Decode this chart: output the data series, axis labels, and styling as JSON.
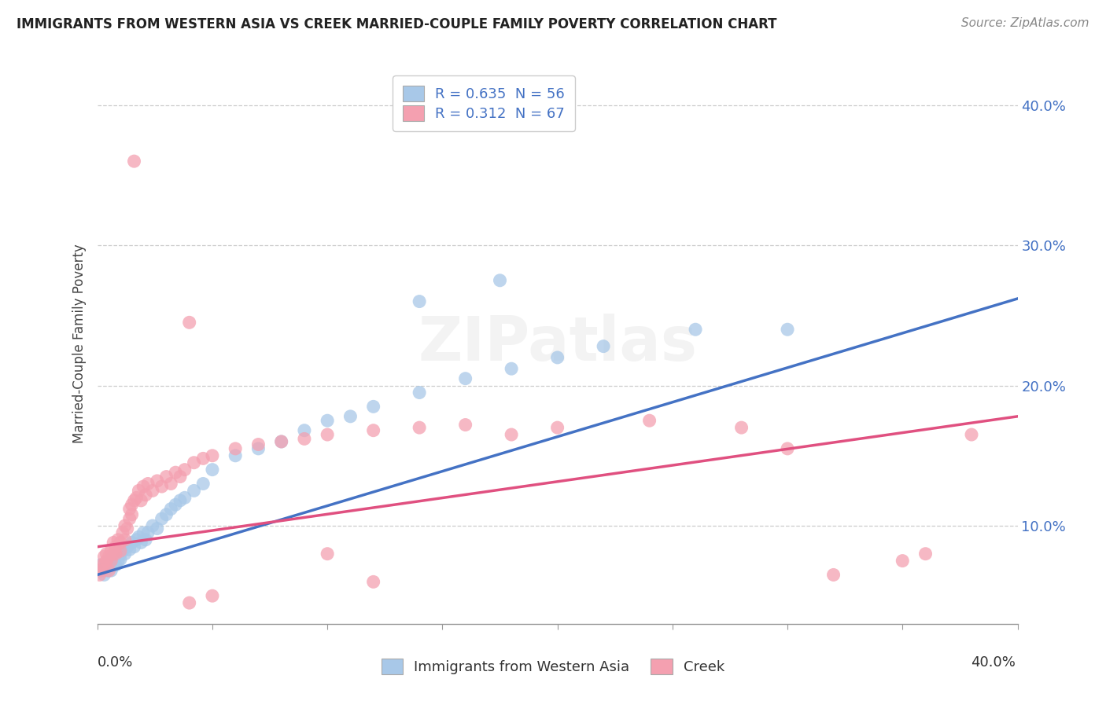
{
  "title": "IMMIGRANTS FROM WESTERN ASIA VS CREEK MARRIED-COUPLE FAMILY POVERTY CORRELATION CHART",
  "source": "Source: ZipAtlas.com",
  "ylabel": "Married-Couple Family Poverty",
  "xlim": [
    0,
    0.4
  ],
  "ylim": [
    0.03,
    0.43
  ],
  "legend1_label": "R = 0.635  N = 56",
  "legend2_label": "R = 0.312  N = 67",
  "legend1_series": "Immigrants from Western Asia",
  "legend2_series": "Creek",
  "blue_color": "#a8c8e8",
  "pink_color": "#f4a0b0",
  "blue_line_color": "#4472c4",
  "pink_line_color": "#e05080",
  "title_color": "#222222",
  "legend_text_color": "#4472c4",
  "blue_line_x0": 0.0,
  "blue_line_y0": 0.065,
  "blue_line_x1": 0.4,
  "blue_line_y1": 0.262,
  "pink_line_x0": 0.0,
  "pink_line_y0": 0.085,
  "pink_line_x1": 0.4,
  "pink_line_y1": 0.178,
  "blue_scatter": [
    [
      0.001,
      0.072
    ],
    [
      0.002,
      0.068
    ],
    [
      0.003,
      0.065
    ],
    [
      0.003,
      0.07
    ],
    [
      0.004,
      0.068
    ],
    [
      0.004,
      0.072
    ],
    [
      0.005,
      0.07
    ],
    [
      0.005,
      0.075
    ],
    [
      0.006,
      0.068
    ],
    [
      0.006,
      0.073
    ],
    [
      0.007,
      0.075
    ],
    [
      0.007,
      0.078
    ],
    [
      0.008,
      0.072
    ],
    [
      0.008,
      0.078
    ],
    [
      0.009,
      0.075
    ],
    [
      0.01,
      0.08
    ],
    [
      0.01,
      0.076
    ],
    [
      0.011,
      0.082
    ],
    [
      0.012,
      0.08
    ],
    [
      0.013,
      0.085
    ],
    [
      0.014,
      0.083
    ],
    [
      0.015,
      0.088
    ],
    [
      0.016,
      0.085
    ],
    [
      0.017,
      0.09
    ],
    [
      0.018,
      0.092
    ],
    [
      0.019,
      0.088
    ],
    [
      0.02,
      0.095
    ],
    [
      0.021,
      0.09
    ],
    [
      0.022,
      0.095
    ],
    [
      0.024,
      0.1
    ],
    [
      0.026,
      0.098
    ],
    [
      0.028,
      0.105
    ],
    [
      0.03,
      0.108
    ],
    [
      0.032,
      0.112
    ],
    [
      0.034,
      0.115
    ],
    [
      0.036,
      0.118
    ],
    [
      0.038,
      0.12
    ],
    [
      0.042,
      0.125
    ],
    [
      0.046,
      0.13
    ],
    [
      0.05,
      0.14
    ],
    [
      0.06,
      0.15
    ],
    [
      0.07,
      0.155
    ],
    [
      0.08,
      0.16
    ],
    [
      0.09,
      0.168
    ],
    [
      0.1,
      0.175
    ],
    [
      0.11,
      0.178
    ],
    [
      0.12,
      0.185
    ],
    [
      0.14,
      0.195
    ],
    [
      0.16,
      0.205
    ],
    [
      0.18,
      0.212
    ],
    [
      0.2,
      0.22
    ],
    [
      0.22,
      0.228
    ],
    [
      0.26,
      0.24
    ],
    [
      0.3,
      0.24
    ],
    [
      0.14,
      0.26
    ],
    [
      0.175,
      0.275
    ]
  ],
  "pink_scatter": [
    [
      0.001,
      0.065
    ],
    [
      0.002,
      0.072
    ],
    [
      0.002,
      0.068
    ],
    [
      0.003,
      0.078
    ],
    [
      0.003,
      0.072
    ],
    [
      0.004,
      0.075
    ],
    [
      0.004,
      0.08
    ],
    [
      0.005,
      0.068
    ],
    [
      0.005,
      0.078
    ],
    [
      0.006,
      0.082
    ],
    [
      0.006,
      0.075
    ],
    [
      0.007,
      0.08
    ],
    [
      0.007,
      0.088
    ],
    [
      0.008,
      0.085
    ],
    [
      0.008,
      0.08
    ],
    [
      0.009,
      0.09
    ],
    [
      0.01,
      0.088
    ],
    [
      0.01,
      0.082
    ],
    [
      0.011,
      0.095
    ],
    [
      0.012,
      0.09
    ],
    [
      0.012,
      0.1
    ],
    [
      0.013,
      0.098
    ],
    [
      0.014,
      0.105
    ],
    [
      0.014,
      0.112
    ],
    [
      0.015,
      0.108
    ],
    [
      0.015,
      0.115
    ],
    [
      0.016,
      0.118
    ],
    [
      0.017,
      0.12
    ],
    [
      0.018,
      0.125
    ],
    [
      0.019,
      0.118
    ],
    [
      0.02,
      0.128
    ],
    [
      0.021,
      0.122
    ],
    [
      0.022,
      0.13
    ],
    [
      0.024,
      0.125
    ],
    [
      0.026,
      0.132
    ],
    [
      0.028,
      0.128
    ],
    [
      0.03,
      0.135
    ],
    [
      0.032,
      0.13
    ],
    [
      0.034,
      0.138
    ],
    [
      0.036,
      0.135
    ],
    [
      0.038,
      0.14
    ],
    [
      0.042,
      0.145
    ],
    [
      0.046,
      0.148
    ],
    [
      0.05,
      0.15
    ],
    [
      0.06,
      0.155
    ],
    [
      0.07,
      0.158
    ],
    [
      0.08,
      0.16
    ],
    [
      0.09,
      0.162
    ],
    [
      0.1,
      0.165
    ],
    [
      0.12,
      0.168
    ],
    [
      0.14,
      0.17
    ],
    [
      0.16,
      0.172
    ],
    [
      0.18,
      0.165
    ],
    [
      0.2,
      0.17
    ],
    [
      0.24,
      0.175
    ],
    [
      0.28,
      0.17
    ],
    [
      0.016,
      0.36
    ],
    [
      0.04,
      0.245
    ],
    [
      0.32,
      0.065
    ],
    [
      0.35,
      0.075
    ],
    [
      0.36,
      0.08
    ],
    [
      0.38,
      0.165
    ],
    [
      0.3,
      0.155
    ],
    [
      0.1,
      0.08
    ],
    [
      0.12,
      0.06
    ],
    [
      0.04,
      0.045
    ],
    [
      0.05,
      0.05
    ]
  ]
}
